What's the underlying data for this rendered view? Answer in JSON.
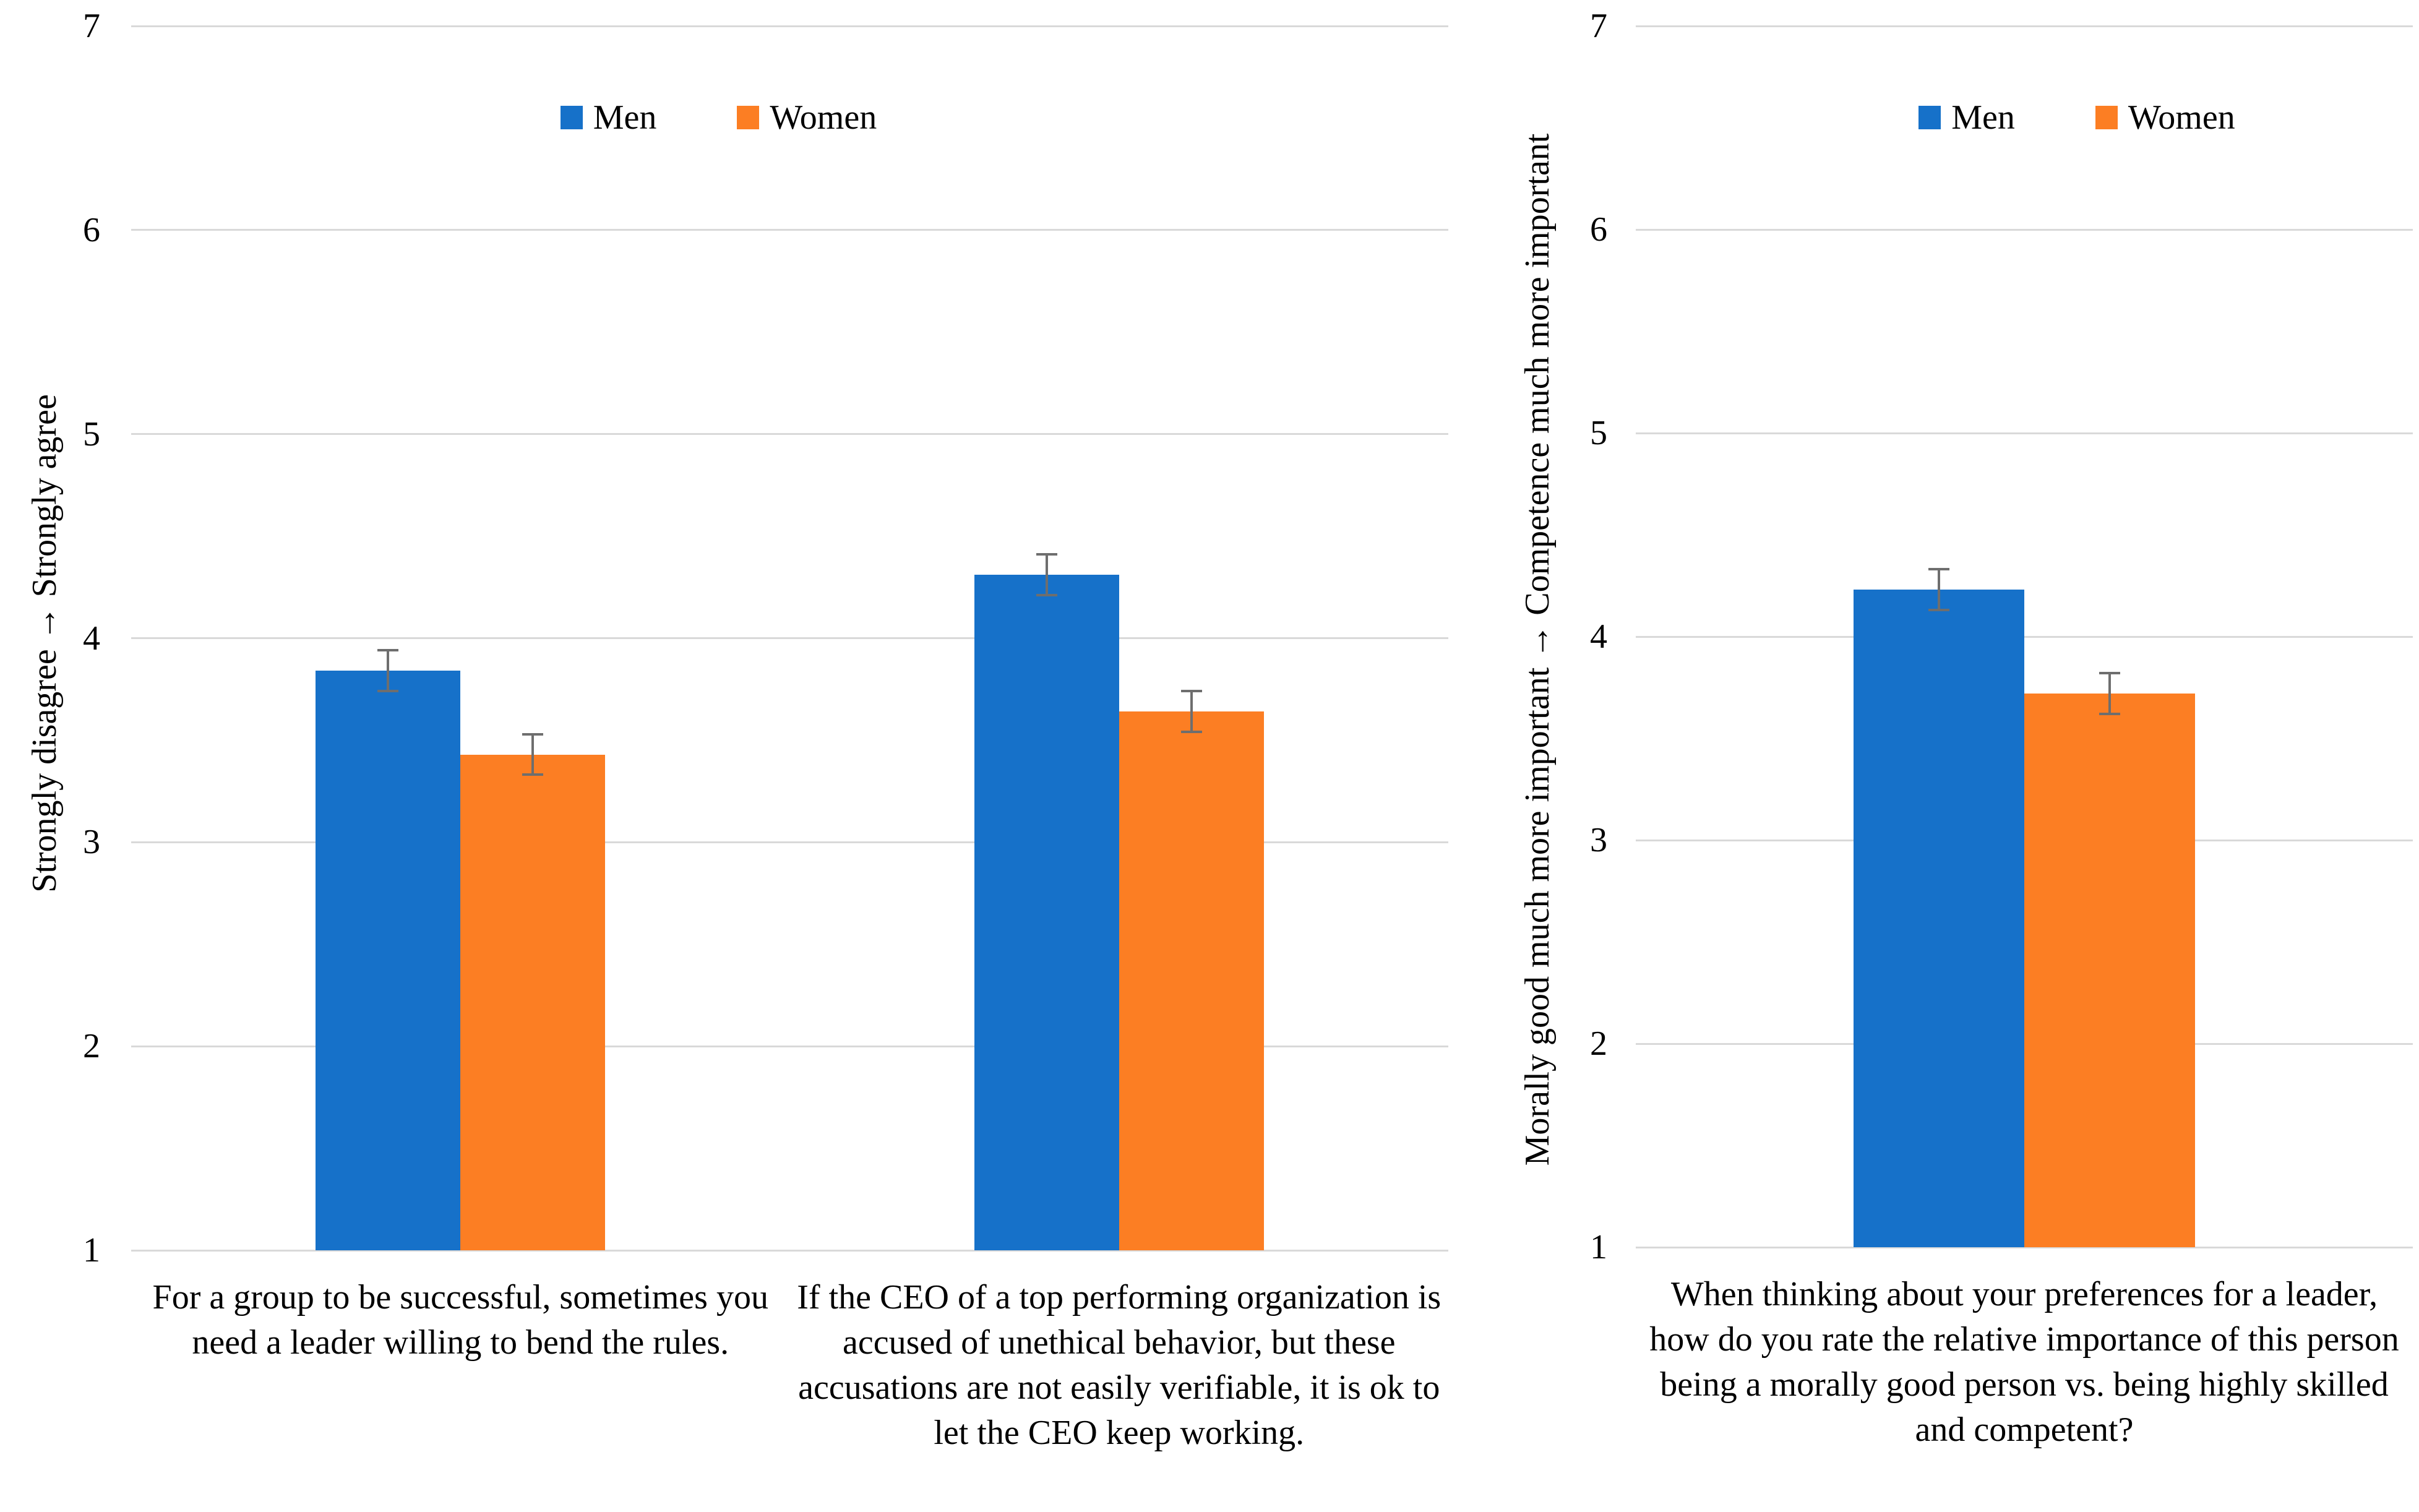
{
  "chart_data": [
    {
      "type": "bar",
      "title": "",
      "ylabel": "Strongly disagree → Strongly agree",
      "xlabel": "",
      "ylim": [
        1,
        7
      ],
      "yticks": [
        1,
        2,
        3,
        4,
        5,
        6,
        7
      ],
      "grid": "horizontal-light-gray",
      "legend_position": "top-center",
      "legend": [
        "Men",
        "Women"
      ],
      "categories": [
        "For a group to be successful, sometimes you need a leader willing to bend the rules.",
        "If the CEO of a top performing organization is accused of unethical behavior, but these accusations are not easily verifiable, it is ok to let the CEO keep working."
      ],
      "series": [
        {
          "name": "Men",
          "color": "#1671C9",
          "values": [
            3.84,
            4.31
          ],
          "errors": [
            0.1,
            0.1
          ]
        },
        {
          "name": "Women",
          "color": "#FC7E23",
          "values": [
            3.43,
            3.64
          ],
          "errors": [
            0.1,
            0.1
          ]
        }
      ]
    },
    {
      "type": "bar",
      "title": "",
      "ylabel": "Morally good much more important → Competence much more important",
      "xlabel": "",
      "ylim": [
        1,
        7
      ],
      "yticks": [
        1,
        2,
        3,
        4,
        5,
        6,
        7
      ],
      "grid": "horizontal-light-gray",
      "legend_position": "top-center",
      "legend": [
        "Men",
        "Women"
      ],
      "categories": [
        "When thinking about your preferences for a leader, how do you rate the relative importance of this person being a morally good person vs. being highly skilled and competent?"
      ],
      "series": [
        {
          "name": "Men",
          "color": "#1671C9",
          "values": [
            4.23
          ],
          "errors": [
            0.1
          ]
        },
        {
          "name": "Women",
          "color": "#FC7E23",
          "values": [
            3.72
          ],
          "errors": [
            0.1
          ]
        }
      ]
    }
  ],
  "colors": {
    "men_bar": "#1671C9",
    "women_bar": "#FC7E23",
    "gridline": "#D9D9D9",
    "error_bar": "#6E6E6E",
    "text": "#000000",
    "background": "#FFFFFF"
  }
}
